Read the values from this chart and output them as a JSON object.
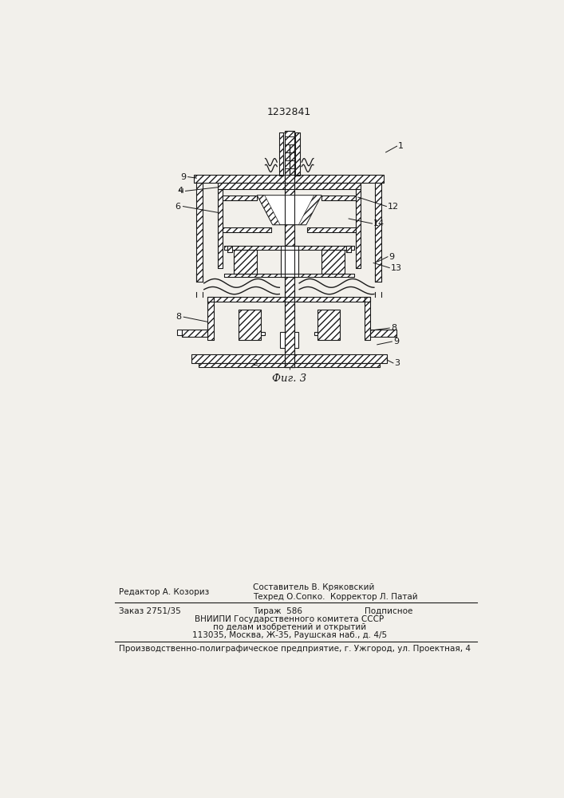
{
  "title": "1232841",
  "fig_label": "Фиг. 3",
  "bg_color": "#f2f0eb",
  "line_color": "#1a1a1a",
  "bottom_texts": {
    "editor": "Редактор А. Козориз",
    "compiler": "Составитель В. Кряковский",
    "techred": "Техред О.Сопко.  Корректор Л. Патай",
    "order": "Заказ 2751/35",
    "tirazh": "Тираж  586",
    "podpisnoe": "Подписное",
    "vnipi1": "ВНИИПИ Государственного комитета СССР",
    "vnipi2": "по делам изобретений и открытий",
    "vnipi3": "113035, Москва, Ж-35, Раушская наб., д. 4/5",
    "factory": "Производственно-полиграфическое предприятие, г. Ужгород, ул. Проектная, 4"
  }
}
